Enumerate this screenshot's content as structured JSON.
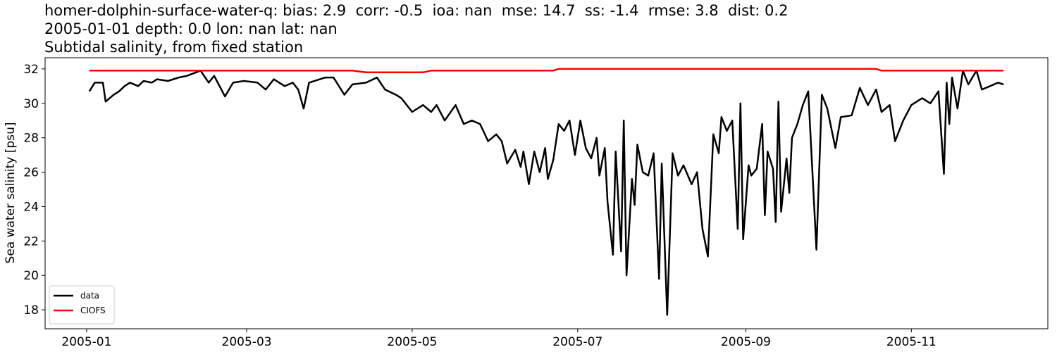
{
  "chart_data": {
    "type": "line",
    "title": "homer-dolphin-surface-water-q: bias: 2.9  corr: -0.5  ioa: nan  mse: 14.7  ss: -1.4  rmse: 3.8  dist: 0.2",
    "subtitle": "2005-01-01 depth: 0.0 lon: nan lat: nan",
    "subtitle2": "Subtidal salinity, from fixed station",
    "y_label": "Sea water salinity [psu]",
    "legend": "lower left",
    "xlim": [
      -15.3,
      354.3
    ],
    "ylim": [
      16.9,
      32.65
    ],
    "xticks": [
      {
        "value": 0,
        "label": "2005-01"
      },
      {
        "value": 59,
        "label": "2005-03"
      },
      {
        "value": 120,
        "label": "2005-05"
      },
      {
        "value": 181,
        "label": "2005-07"
      },
      {
        "value": 243,
        "label": "2005-09"
      },
      {
        "value": 304,
        "label": "2005-11"
      }
    ],
    "yticks": [
      18,
      20,
      22,
      24,
      26,
      28,
      30,
      32
    ],
    "x": [
      1,
      3,
      6,
      7,
      10,
      12,
      14,
      16,
      19,
      21,
      24,
      26,
      30,
      34,
      37,
      42,
      45,
      47,
      51,
      54,
      58,
      63,
      66,
      69,
      73,
      76,
      78,
      80,
      82,
      88,
      91,
      95,
      98,
      103,
      107,
      110,
      114,
      116,
      120,
      124,
      127,
      129,
      132,
      136,
      139,
      142,
      145,
      148,
      151,
      153,
      155,
      158,
      160,
      161,
      163,
      165,
      167,
      169,
      170,
      172,
      174,
      176,
      178,
      180,
      182,
      184,
      186,
      188,
      189,
      191,
      192,
      194,
      195,
      197,
      198,
      199,
      201,
      202,
      203,
      205,
      207,
      209,
      211,
      212,
      214,
      216,
      218,
      220,
      223,
      225,
      227,
      229,
      231,
      233,
      234,
      236,
      238,
      240,
      241,
      242,
      244,
      245,
      247,
      249,
      250,
      251,
      253,
      254,
      255,
      256,
      258,
      259,
      260,
      262,
      264,
      266,
      267,
      269,
      271,
      273,
      276,
      278,
      282,
      285,
      288,
      291,
      293,
      296,
      298,
      301,
      304,
      308,
      311,
      314,
      316,
      317,
      318,
      319,
      321,
      323,
      325,
      328,
      330,
      333,
      336,
      338
    ],
    "series": [
      {
        "name": "data",
        "color": "#000000",
        "values": [
          30.7,
          31.2,
          31.2,
          30.1,
          30.5,
          30.7,
          31.0,
          31.2,
          31.0,
          31.3,
          31.2,
          31.4,
          31.3,
          31.5,
          31.6,
          31.9,
          31.2,
          31.6,
          30.4,
          31.2,
          31.3,
          31.2,
          30.8,
          31.4,
          31.0,
          31.2,
          30.8,
          29.7,
          31.2,
          31.5,
          31.5,
          30.5,
          31.1,
          31.2,
          31.5,
          30.8,
          30.5,
          30.3,
          29.5,
          29.9,
          29.5,
          29.9,
          29.0,
          29.9,
          28.8,
          29.0,
          28.8,
          27.8,
          28.2,
          27.8,
          26.5,
          27.3,
          26.3,
          27.2,
          25.3,
          27.2,
          26.0,
          27.4,
          25.6,
          26.7,
          28.8,
          28.4,
          29.0,
          27.0,
          29.0,
          27.4,
          26.8,
          28.0,
          25.8,
          27.4,
          24.3,
          21.2,
          27.2,
          21.4,
          29.0,
          20.0,
          25.6,
          24.1,
          27.6,
          26.0,
          25.8,
          27.1,
          19.8,
          26.5,
          17.7,
          27.1,
          25.8,
          26.4,
          25.3,
          26.0,
          22.7,
          21.1,
          28.2,
          27.1,
          29.2,
          28.4,
          29.0,
          22.7,
          30.0,
          22.1,
          26.4,
          25.8,
          26.2,
          28.8,
          23.5,
          27.2,
          26.2,
          23.1,
          30.1,
          23.7,
          26.8,
          24.8,
          28.0,
          28.8,
          29.9,
          30.7,
          27.6,
          21.5,
          30.5,
          29.7,
          27.4,
          29.2,
          29.3,
          30.9,
          29.9,
          30.8,
          29.5,
          29.9,
          27.8,
          29.0,
          29.9,
          30.3,
          30.0,
          30.7,
          25.9,
          31.2,
          28.8,
          31.5,
          29.7,
          31.9,
          31.1,
          31.9,
          30.8,
          31.0,
          31.2,
          31.1
        ]
      },
      {
        "name": "CIOFS",
        "color": "#ff0000",
        "values": [
          31.9,
          31.9,
          31.9,
          31.9,
          31.9,
          31.9,
          31.9,
          31.9,
          31.9,
          31.9,
          31.9,
          31.9,
          31.9,
          31.9,
          31.9,
          31.9,
          31.9,
          31.9,
          31.9,
          31.9,
          31.9,
          31.9,
          31.9,
          31.9,
          31.9,
          31.9,
          31.9,
          31.9,
          31.9,
          31.9,
          31.9,
          31.9,
          31.9,
          31.8,
          31.8,
          31.8,
          31.8,
          31.8,
          31.8,
          31.8,
          31.9,
          31.9,
          31.9,
          31.9,
          31.9,
          31.9,
          31.9,
          31.9,
          31.9,
          31.9,
          31.9,
          31.9,
          31.9,
          31.9,
          31.9,
          31.9,
          31.9,
          31.9,
          31.9,
          31.9,
          32.0,
          32.0,
          32.0,
          32.0,
          32.0,
          32.0,
          32.0,
          32.0,
          32.0,
          32.0,
          32.0,
          32.0,
          32.0,
          32.0,
          32.0,
          32.0,
          32.0,
          32.0,
          32.0,
          32.0,
          32.0,
          32.0,
          32.0,
          32.0,
          32.0,
          32.0,
          32.0,
          32.0,
          32.0,
          32.0,
          32.0,
          32.0,
          32.0,
          32.0,
          32.0,
          32.0,
          32.0,
          32.0,
          32.0,
          32.0,
          32.0,
          32.0,
          32.0,
          32.0,
          32.0,
          32.0,
          32.0,
          32.0,
          32.0,
          32.0,
          32.0,
          32.0,
          32.0,
          32.0,
          32.0,
          32.0,
          32.0,
          32.0,
          32.0,
          32.0,
          32.0,
          32.0,
          32.0,
          32.0,
          32.0,
          32.0,
          31.9,
          31.9,
          31.9,
          31.9,
          31.9,
          31.9,
          31.9,
          31.9,
          31.9,
          31.9,
          31.9,
          31.9,
          31.9,
          31.9,
          31.9,
          31.9,
          31.9,
          31.9,
          31.9,
          31.9
        ]
      }
    ]
  }
}
